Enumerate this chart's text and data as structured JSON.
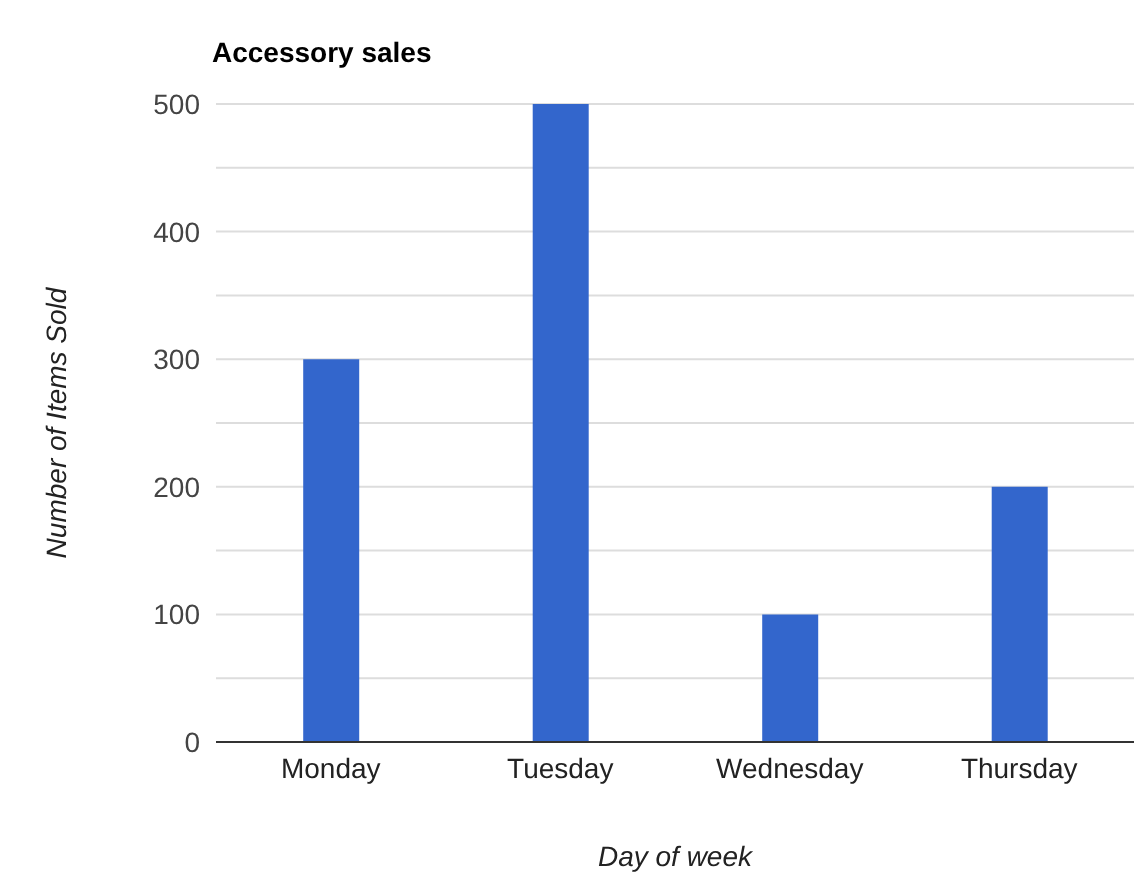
{
  "chart_data": {
    "type": "bar",
    "title": "Accessory sales",
    "xlabel": "Day of week",
    "ylabel": "Number of Items Sold",
    "categories": [
      "Monday",
      "Tuesday",
      "Wednesday",
      "Thursday"
    ],
    "values": [
      300,
      500,
      100,
      200
    ],
    "color": "#3366cc",
    "ylim": [
      0,
      500
    ],
    "yticks": [
      0,
      {
        "value": 50,
        "label": null
      },
      100,
      {
        "value": 150,
        "label": null
      },
      200,
      {
        "value": 250,
        "label": null
      },
      300,
      {
        "value": 350,
        "label": null
      },
      400,
      {
        "value": 450,
        "label": null
      },
      500
    ],
    "grid": "y"
  }
}
